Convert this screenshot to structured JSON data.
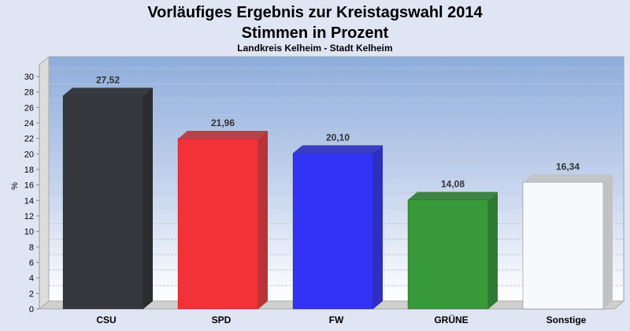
{
  "chart_data": {
    "type": "bar",
    "title": "Vorläufiges Ergebnis zur Kreistagswahl 2014",
    "subtitle": "Stimmen in Prozent",
    "subsubtitle": "Landkreis Kelheim - Stadt Kelheim",
    "xlabel": "",
    "ylabel": "%",
    "ylim": [
      0,
      30
    ],
    "yticks": [
      0,
      2,
      4,
      6,
      8,
      10,
      12,
      14,
      16,
      18,
      20,
      22,
      24,
      26,
      28,
      30
    ],
    "grid": true,
    "categories": [
      "CSU",
      "SPD",
      "FW",
      "GRÜNE",
      "Sonstige"
    ],
    "values": [
      27.52,
      21.96,
      20.1,
      14.08,
      16.34
    ],
    "value_labels": [
      "27,52",
      "21,96",
      "20,10",
      "14,08",
      "16,34"
    ],
    "colors": [
      "#35373c",
      "#f23238",
      "#3333f5",
      "#389a38",
      "#f8f9fd"
    ],
    "side_colors": [
      "#2a2c30",
      "#b83338",
      "#2e2ebf",
      "#2f7a32",
      "#c2c2c2"
    ]
  }
}
